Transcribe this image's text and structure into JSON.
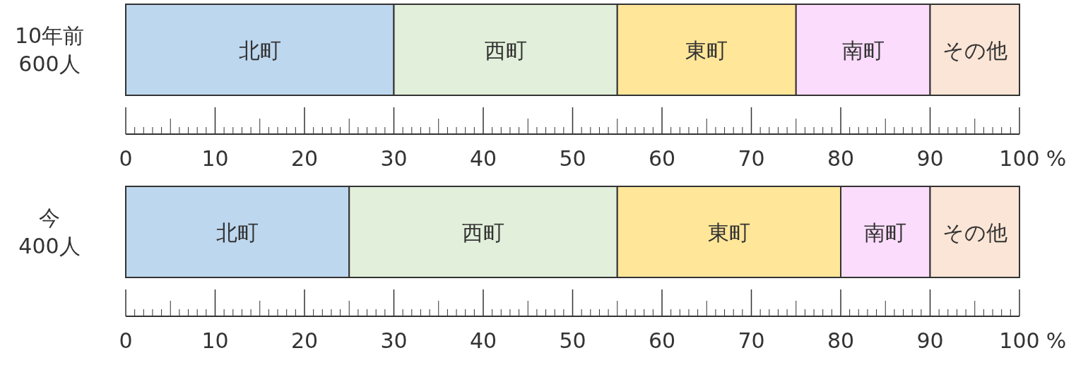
{
  "chart_data": [
    {
      "type": "bar",
      "orientation": "horizontal",
      "stacked": true,
      "categories": [
        "10年前\n600人"
      ],
      "xlim": [
        0,
        100
      ],
      "xticks": [
        0,
        10,
        20,
        30,
        40,
        50,
        60,
        70,
        80,
        90,
        100
      ],
      "xlabel": "%",
      "series": [
        {
          "name": "北町",
          "color": "#bdd7ee",
          "values": [
            30
          ]
        },
        {
          "name": "西町",
          "color": "#e2efda",
          "values": [
            25
          ]
        },
        {
          "name": "東町",
          "color": "#ffe699",
          "values": [
            20
          ]
        },
        {
          "name": "南町",
          "color": "#fcdcfc",
          "values": [
            15
          ]
        },
        {
          "name": "その他",
          "color": "#fbe5d6",
          "values": [
            10
          ]
        }
      ]
    },
    {
      "type": "bar",
      "orientation": "horizontal",
      "stacked": true,
      "categories": [
        "今\n400人"
      ],
      "xlim": [
        0,
        100
      ],
      "xticks": [
        0,
        10,
        20,
        30,
        40,
        50,
        60,
        70,
        80,
        90,
        100
      ],
      "xlabel": "%",
      "series": [
        {
          "name": "北町",
          "color": "#bdd7ee",
          "values": [
            25
          ]
        },
        {
          "name": "西町",
          "color": "#e2efda",
          "values": [
            30
          ]
        },
        {
          "name": "東町",
          "color": "#ffe699",
          "values": [
            25
          ]
        },
        {
          "name": "南町",
          "color": "#fcdcfc",
          "values": [
            10
          ]
        },
        {
          "name": "その他",
          "color": "#fbe5d6",
          "values": [
            10
          ]
        }
      ]
    }
  ]
}
